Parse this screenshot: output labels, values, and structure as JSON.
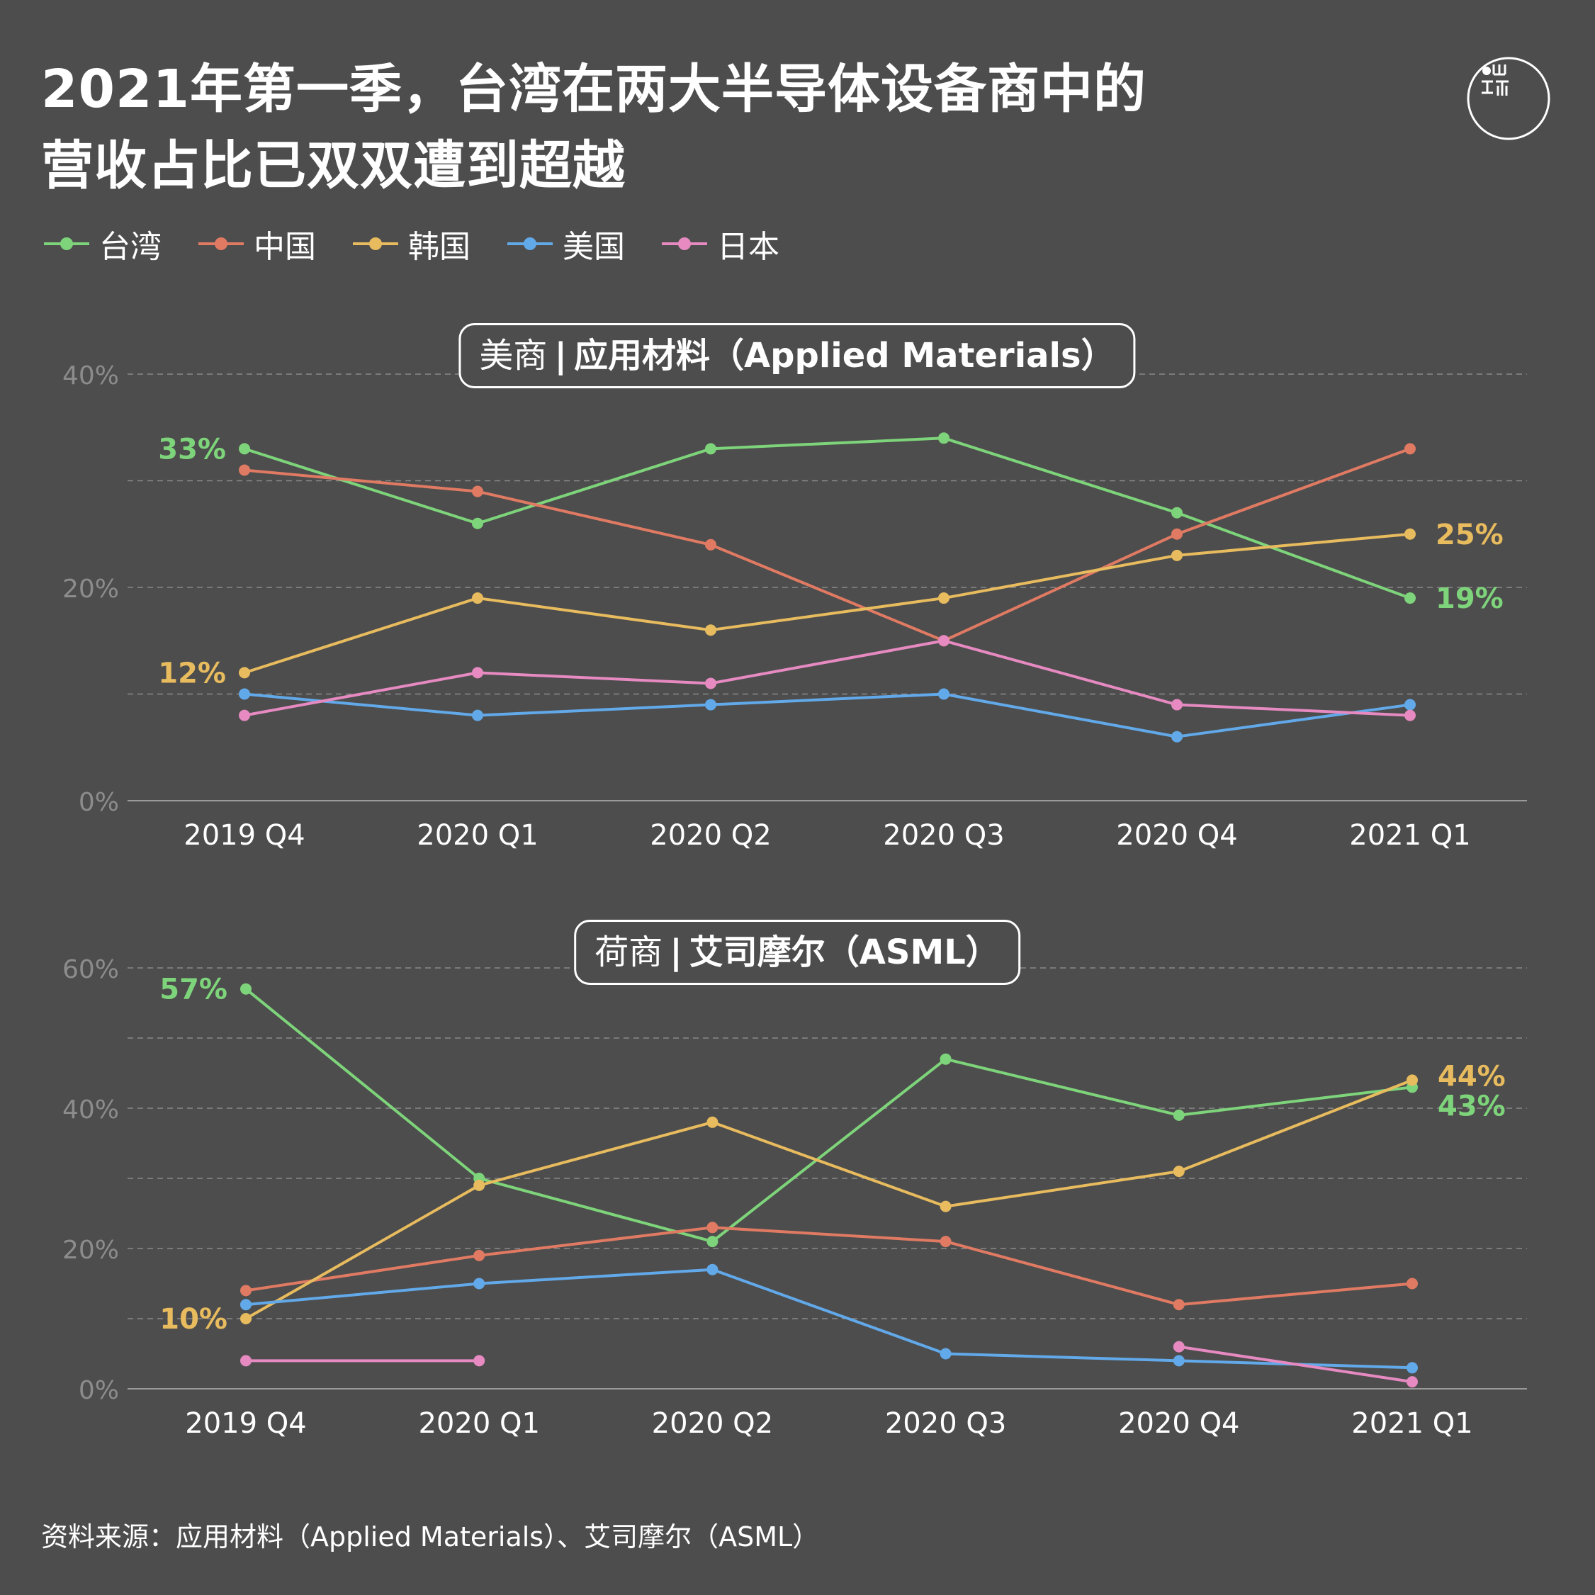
{
  "title": {
    "line1": "2021年第一季，台湾在两大半导体设备商中的",
    "line2": "营收占比已双双遭到超越"
  },
  "logo": {
    "icon": "initium-logo-icon"
  },
  "legend": [
    {
      "label": "台湾",
      "color": "#7ed47a"
    },
    {
      "label": "中国",
      "color": "#e07a63"
    },
    {
      "label": "韩国",
      "color": "#e8bc5e"
    },
    {
      "label": "美国",
      "color": "#62a9ea"
    },
    {
      "label": "日本",
      "color": "#e68ac1"
    }
  ],
  "colors": {
    "background": "#4d4d4d",
    "grid": "#8a8a8a",
    "axis_text": "#8c8c8c",
    "tick_text": "#ffffff"
  },
  "panels": [
    {
      "region": "美商",
      "separator": "|",
      "company": "应用材料（Applied Materials）"
    },
    {
      "region": "荷商",
      "separator": "|",
      "company": "艾司摩尔（ASML）"
    }
  ],
  "chart_data": [
    {
      "type": "line",
      "title": "美商｜应用材料（Applied Materials）",
      "categories": [
        "2019 Q4",
        "2020 Q1",
        "2020 Q2",
        "2020 Q3",
        "2020 Q4",
        "2021 Q1"
      ],
      "ylim": [
        0,
        40
      ],
      "yticks": [
        0,
        20,
        40
      ],
      "ytick_labels": [
        "0%",
        "20%",
        "40%"
      ],
      "grid": true,
      "series": [
        {
          "name": "台湾",
          "color": "#7ed47a",
          "values": [
            33,
            26,
            33,
            34,
            27,
            19
          ]
        },
        {
          "name": "中国",
          "color": "#e07a63",
          "values": [
            31,
            29,
            24,
            15,
            25,
            33
          ]
        },
        {
          "name": "韩国",
          "color": "#e8bc5e",
          "values": [
            12,
            19,
            16,
            19,
            23,
            25
          ]
        },
        {
          "name": "美国",
          "color": "#62a9ea",
          "values": [
            10,
            8,
            9,
            10,
            6,
            9
          ]
        },
        {
          "name": "日本",
          "color": "#e68ac1",
          "values": [
            8,
            12,
            11,
            15,
            9,
            8
          ]
        }
      ],
      "annotations": [
        {
          "text": "33%",
          "series": "台湾",
          "index": 0,
          "side": "left",
          "color": "#7ed47a"
        },
        {
          "text": "12%",
          "series": "韩国",
          "index": 0,
          "side": "left",
          "color": "#e8bc5e"
        },
        {
          "text": "25%",
          "series": "韩国",
          "index": 5,
          "side": "right",
          "color": "#e8bc5e"
        },
        {
          "text": "19%",
          "series": "台湾",
          "index": 5,
          "side": "right",
          "color": "#7ed47a"
        }
      ]
    },
    {
      "type": "line",
      "title": "荷商｜艾司摩尔（ASML）",
      "categories": [
        "2019 Q4",
        "2020 Q1",
        "2020 Q2",
        "2020 Q3",
        "2020 Q4",
        "2021 Q1"
      ],
      "ylim": [
        0,
        60
      ],
      "yticks": [
        0,
        20,
        40,
        60
      ],
      "ytick_labels": [
        "0%",
        "20%",
        "40%",
        "60%"
      ],
      "grid": true,
      "series": [
        {
          "name": "台湾",
          "color": "#7ed47a",
          "values": [
            57,
            30,
            21,
            47,
            39,
            43
          ]
        },
        {
          "name": "中国",
          "color": "#e07a63",
          "values": [
            14,
            19,
            23,
            21,
            12,
            15
          ]
        },
        {
          "name": "韩国",
          "color": "#e8bc5e",
          "values": [
            10,
            29,
            38,
            26,
            31,
            44
          ]
        },
        {
          "name": "美国",
          "color": "#62a9ea",
          "values": [
            12,
            15,
            17,
            5,
            4,
            3
          ]
        },
        {
          "name": "日本",
          "color": "#e68ac1",
          "values": [
            4,
            4,
            null,
            null,
            6,
            1
          ]
        }
      ],
      "annotations": [
        {
          "text": "57%",
          "series": "台湾",
          "index": 0,
          "side": "left",
          "color": "#7ed47a"
        },
        {
          "text": "10%",
          "series": "韩国",
          "index": 0,
          "side": "left",
          "color": "#e8bc5e"
        },
        {
          "text": "44%",
          "series": "韩国",
          "index": 5,
          "side": "right",
          "color": "#e8bc5e"
        },
        {
          "text": "43%",
          "series": "台湾",
          "index": 5,
          "side": "right",
          "color": "#7ed47a"
        }
      ]
    }
  ],
  "source": "资料来源：应用材料（Applied Materials）、艾司摩尔（ASML）"
}
